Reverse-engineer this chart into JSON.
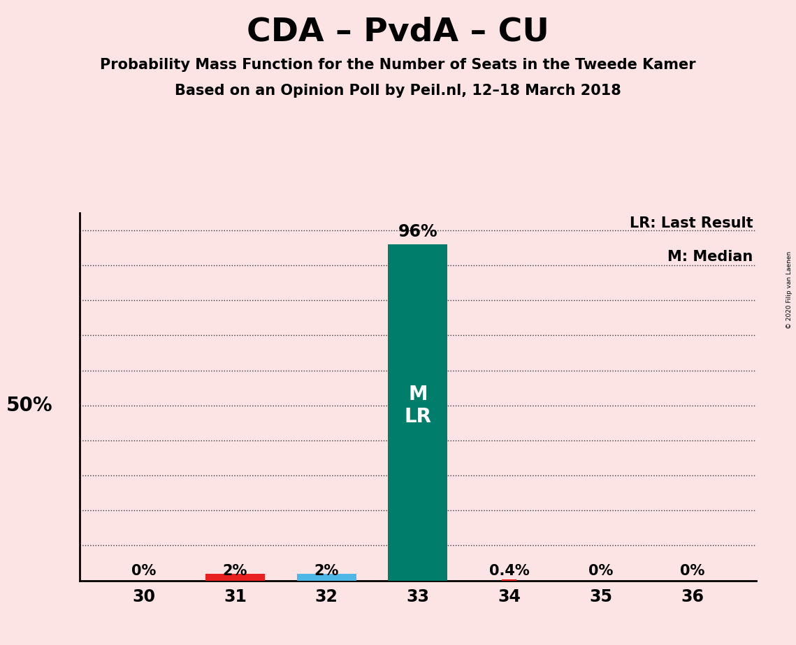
{
  "title": "CDA – PvdA – CU",
  "subtitle1": "Probability Mass Function for the Number of Seats in the Tweede Kamer",
  "subtitle2": "Based on an Opinion Poll by Peil.nl, 12–18 March 2018",
  "copyright": "© 2020 Filip van Laenen",
  "legend_lr": "LR: Last Result",
  "legend_m": "M: Median",
  "background_color": "#fce4e4",
  "bar_color_main": "#007d6b",
  "bar_color_red": "#e82020",
  "bar_color_blue": "#4db8e8",
  "categories": [
    30,
    31,
    32,
    33,
    34,
    35,
    36
  ],
  "values": [
    0.0,
    0.02,
    0.02,
    0.96,
    0.004,
    0.0,
    0.0
  ],
  "value_labels": [
    "0%",
    "2%",
    "2%",
    "96%",
    "0.4%",
    "0%",
    "0%"
  ],
  "median": 33,
  "last_result": 33,
  "ylabel_50": "50%",
  "ylim": [
    0,
    1.05
  ],
  "ytick_positions": [
    0.1,
    0.2,
    0.3,
    0.4,
    0.5,
    0.6,
    0.7,
    0.8,
    0.9,
    1.0
  ],
  "bar_width": 0.65,
  "title_fontsize": 34,
  "subtitle_fontsize": 15,
  "label_fontsize": 15,
  "tick_fontsize": 17,
  "annotation_fontsize": 17,
  "inside_label_fontsize": 20,
  "ylabel_fontsize": 20
}
